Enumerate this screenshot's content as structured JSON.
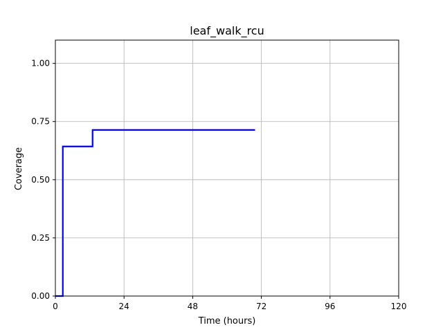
{
  "chart_data": {
    "type": "line",
    "title": "leaf_walk_rcu",
    "xlabel": "Time (hours)",
    "ylabel": "Coverage",
    "xlim": [
      0,
      120
    ],
    "ylim": [
      0,
      1.1
    ],
    "xticks": [
      0,
      24,
      48,
      72,
      96,
      120
    ],
    "yticks": [
      0.0,
      0.25,
      0.5,
      0.75,
      1.0
    ],
    "xtick_labels": [
      "0",
      "24",
      "48",
      "72",
      "96",
      "120"
    ],
    "ytick_labels": [
      "0.00",
      "0.25",
      "0.50",
      "0.75",
      "1.00"
    ],
    "grid": true,
    "series": [
      {
        "color": "#0000ff",
        "x": [
          0,
          2.6,
          2.6,
          13,
          13,
          69.8
        ],
        "y": [
          0,
          0,
          0.643,
          0.643,
          0.714,
          0.714
        ]
      }
    ]
  }
}
